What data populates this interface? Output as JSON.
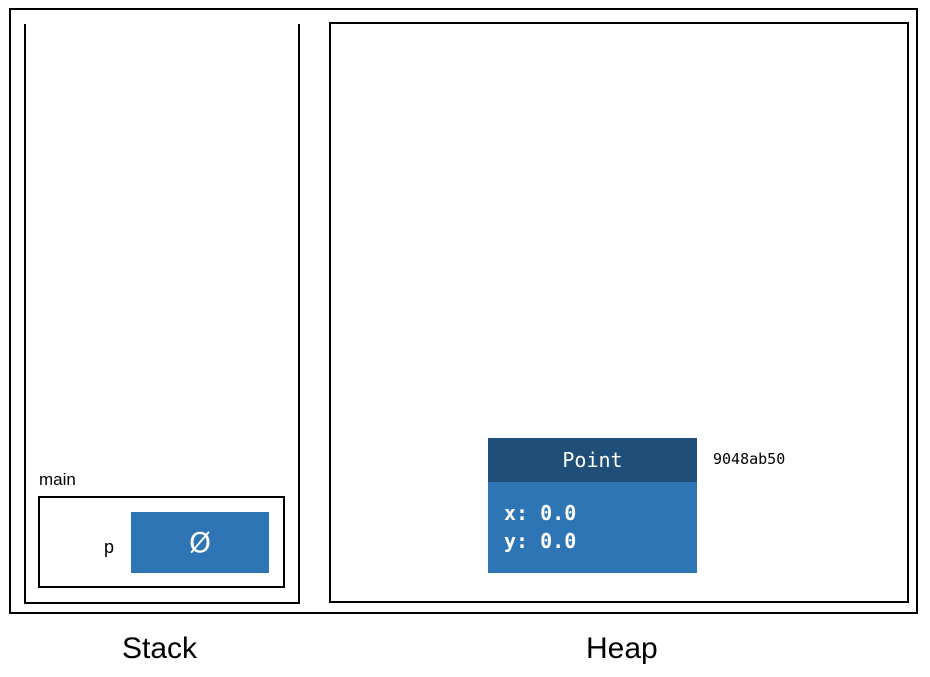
{
  "stack": {
    "caption": "Stack",
    "frame": {
      "name": "main",
      "variables": [
        {
          "name": "p",
          "value": "Ø"
        }
      ]
    }
  },
  "heap": {
    "caption": "Heap",
    "objects": [
      {
        "type": "Point",
        "address": "9048ab50",
        "fields": [
          "x: 0.0",
          "y: 0.0"
        ]
      }
    ]
  },
  "colors": {
    "value_box": "#2e75b6",
    "object_header": "#1f4e79",
    "object_body": "#2e75b6",
    "text_on_box": "#ffffff",
    "border": "#000000"
  }
}
